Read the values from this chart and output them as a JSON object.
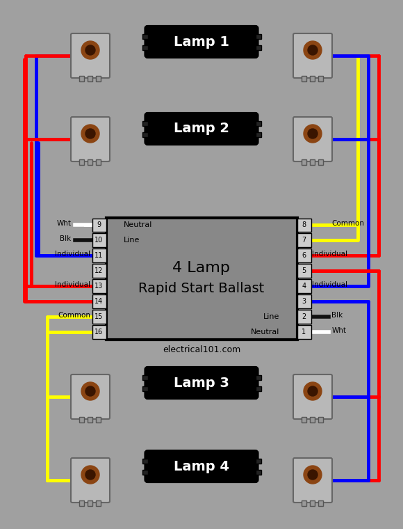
{
  "bg_color": "#a0a0a0",
  "fig_width": 5.8,
  "fig_height": 7.6,
  "title": "4 Lamp\nRapid Start Ballast",
  "subtitle": "electrical101.com",
  "lamp_labels": [
    "Lamp 1",
    "Lamp 2",
    "Lamp 3",
    "Lamp 4"
  ],
  "left_pins": [
    9,
    10,
    11,
    12,
    13,
    14,
    15,
    16
  ],
  "right_pins": [
    8,
    7,
    6,
    5,
    4,
    3,
    2,
    1
  ],
  "left_labels": {
    "9": "Neutral",
    "10": "Line",
    "11": "",
    "12": "",
    "13": "",
    "14": "",
    "15": "",
    "16": ""
  },
  "right_labels": {
    "8": "",
    "7": "",
    "6": "",
    "5": "",
    "4": "",
    "3": "",
    "2": "Line",
    "1": "Neutral"
  },
  "left_wire_labels": [
    "Wht",
    "Blk",
    "Individual",
    "Individual",
    "Common"
  ],
  "right_wire_labels": [
    "Common",
    "Individual",
    "Individual",
    "Blk",
    "Wht"
  ],
  "wire_colors_left": [
    "white",
    "black",
    "blue",
    "red",
    "yellow"
  ],
  "wire_colors_right": [
    "yellow",
    "red",
    "blue",
    "black",
    "white"
  ],
  "ballast_color": "#888888",
  "ballast_border": "black",
  "lamp_color": "#1a1a1a",
  "socket_color": "#b0b0b0"
}
